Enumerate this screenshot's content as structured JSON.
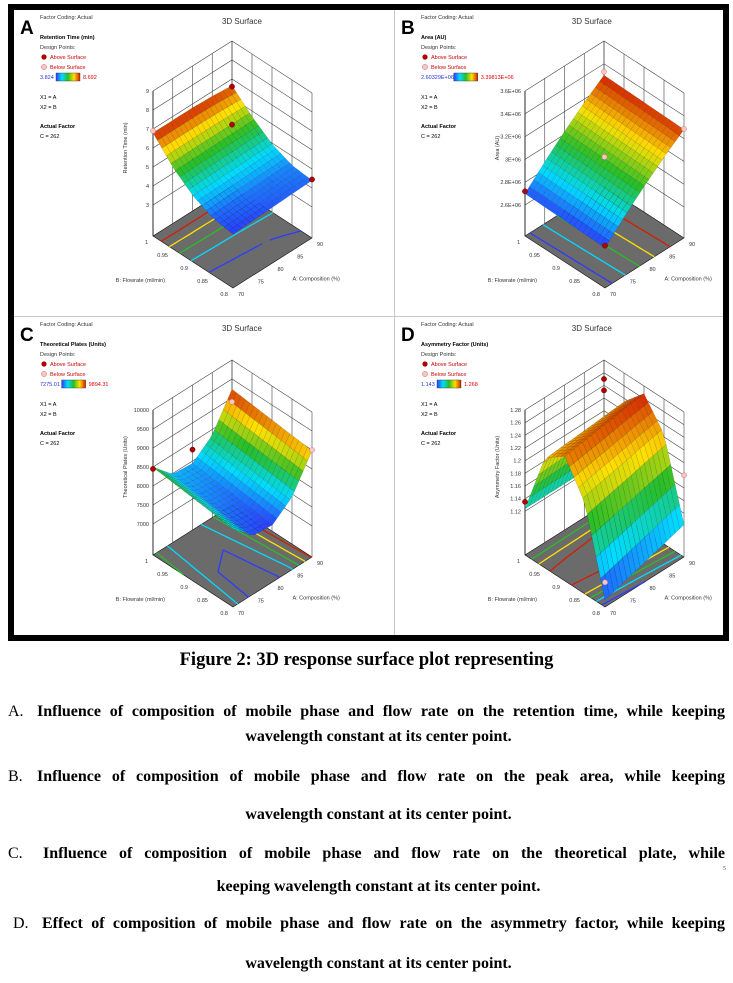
{
  "panels": [
    {
      "letter": "A",
      "factor_coding": "Factor Coding: Actual",
      "response": "Retention Time (min)",
      "design_points_label": "Design Points:",
      "above": "Above Surface",
      "below": "Below Surface",
      "range_min": "3.824",
      "range_max": "8.692",
      "x1": "X1 = A",
      "x2": "X2 = B",
      "actual_factor": "Actual Factor",
      "c_value": "C = 262"
    },
    {
      "letter": "B",
      "factor_coding": "Factor Coding: Actual",
      "response": "Area (AU)",
      "design_points_label": "Design Points:",
      "above": "Above Surface",
      "below": "Below Surface",
      "range_min": "2.60329E+06",
      "range_max": "3.39813E+06",
      "x1": "X1 = A",
      "x2": "X2 = B",
      "actual_factor": "Actual Factor",
      "c_value": "C = 262"
    },
    {
      "letter": "C",
      "factor_coding": "Factor Coding: Actual",
      "response": "Theoretical Plates (Units)",
      "design_points_label": "Design Points:",
      "above": "Above Surface",
      "below": "Below Surface",
      "range_min": "7275.01",
      "range_max": "9894.31",
      "x1": "X1 = A",
      "x2": "X2 = B",
      "actual_factor": "Actual Factor",
      "c_value": "C = 262"
    },
    {
      "letter": "D",
      "factor_coding": "Factor Coding: Actual",
      "response": "Asymmetry Factor (Units)",
      "design_points_label": "Design Points:",
      "above": "Above Surface",
      "below": "Below Surface",
      "range_min": "1.143",
      "range_max": "1.268",
      "x1": "X1 = A",
      "x2": "X2 = B",
      "actual_factor": "Actual Factor",
      "c_value": "C = 262"
    }
  ],
  "colors": {
    "above": "#b00000",
    "below": "#f4c6c6",
    "floor": "#6b6b6b",
    "grid": "#444444",
    "low": "#2b3cff",
    "high": "#d02000"
  },
  "chart_data": [
    {
      "type": "surface",
      "title": "3D Surface",
      "zlabel": "Retention Time (min)",
      "xlabel": "A: Composition (%)",
      "ylabel": "B: Flowrate (ml/min)",
      "x": [
        70,
        75,
        80,
        85,
        90
      ],
      "x_tick_labels": [
        "70",
        "75",
        "80",
        "85",
        "90"
      ],
      "y": [
        0.8,
        0.85,
        0.9,
        0.95,
        1
      ],
      "y_tick_labels": [
        "0.8",
        "0.85",
        "0.9",
        "0.95",
        "1"
      ],
      "zlim": [
        3,
        9
      ],
      "zticks": [
        3,
        4,
        5,
        6,
        7,
        8,
        9
      ],
      "ztick_labels": [
        "3",
        "4",
        "5",
        "6",
        "7",
        "8",
        "9"
      ],
      "z": [
        [
          4.2,
          4.25,
          4.3,
          4.35,
          4.4
        ],
        [
          4.36,
          4.4,
          4.44,
          4.47,
          4.51
        ],
        [
          4.85,
          4.88,
          4.9,
          4.93,
          4.95
        ],
        [
          5.66,
          5.68,
          5.69,
          5.7,
          5.71
        ],
        [
          6.8,
          6.8,
          6.8,
          6.75,
          6.65
        ]
      ],
      "design_points": [
        {
          "x": 70,
          "y": 1,
          "z": 6.9,
          "type": "below"
        },
        {
          "x": 90,
          "y": 1,
          "z": 6.6,
          "type": "above"
        },
        {
          "x": 90,
          "y": 1,
          "z": 4.6,
          "type": "above"
        },
        {
          "x": 90,
          "y": 0.8,
          "z": 4.45,
          "type": "above"
        }
      ]
    },
    {
      "type": "surface",
      "title": "3D Surface",
      "zlabel": "Area (AU)",
      "xlabel": "A: Composition (%)",
      "ylabel": "B: Flowrate (ml/min)",
      "x": [
        70,
        75,
        80,
        85,
        90
      ],
      "x_tick_labels": [
        "70",
        "75",
        "80",
        "85",
        "90"
      ],
      "y": [
        0.8,
        0.85,
        0.9,
        0.95,
        1
      ],
      "y_tick_labels": [
        "0.8",
        "0.85",
        "0.9",
        "0.95",
        "1"
      ],
      "zlim": [
        2600000,
        3600000
      ],
      "zticks": [
        2600000,
        2800000,
        3000000,
        3200000,
        3400000,
        3600000
      ],
      "ztick_labels": [
        "2.6E+06",
        "2.8E+06",
        "3E+06",
        "3.2E+06",
        "3.4E+06",
        "3.6E+06"
      ],
      "z": [
        [
          2680000,
          2849000,
          3005000,
          3149000,
          3280000
        ],
        [
          2685000,
          2854000,
          3010000,
          3154000,
          3285000
        ],
        [
          2690000,
          2859000,
          3015000,
          3159000,
          3290000
        ],
        [
          2695000,
          2864000,
          3020000,
          3164000,
          3295000
        ],
        [
          2700000,
          2869000,
          3025000,
          3169000,
          3300000
        ]
      ],
      "design_points": [
        {
          "x": 70,
          "y": 1,
          "z": 2720000,
          "type": "above"
        },
        {
          "x": 90,
          "y": 1,
          "z": 3330000,
          "type": "below"
        },
        {
          "x": 80,
          "y": 0.9,
          "z": 3030000,
          "type": "below"
        },
        {
          "x": 90,
          "y": 0.8,
          "z": 3285000,
          "type": "below"
        },
        {
          "x": 70,
          "y": 0.8,
          "z": 2700000,
          "type": "above"
        }
      ]
    },
    {
      "type": "surface",
      "title": "3D Surface",
      "zlabel": "Theoretical Plates (Units)",
      "xlabel": "A: Composition (%)",
      "ylabel": "B: Flowrate (ml/min)",
      "x": [
        70,
        75,
        80,
        85,
        90
      ],
      "x_tick_labels": [
        "70",
        "75",
        "80",
        "85",
        "90"
      ],
      "y": [
        0.8,
        0.85,
        0.9,
        0.95,
        1
      ],
      "y_tick_labels": [
        "0.8",
        "0.85",
        "0.9",
        "0.95",
        "1"
      ],
      "zlim": [
        7000,
        10000
      ],
      "zticks": [
        7000,
        7500,
        8000,
        8500,
        9000,
        9500,
        10000
      ],
      "ztick_labels": [
        "7000",
        "7500",
        "8000",
        "8500",
        "9000",
        "9500",
        "10000"
      ],
      "z": [
        [
          8242,
          7733,
          7687,
          8103,
          8982
        ],
        [
          8305,
          7796,
          7750,
          8166,
          9045
        ],
        [
          8367,
          7858,
          7812,
          8228,
          9107
        ],
        [
          8430,
          7921,
          7875,
          8291,
          9170
        ],
        [
          8492,
          7983,
          7937,
          8353,
          9232
        ]
      ],
      "design_points": [
        {
          "x": 70,
          "y": 1,
          "z": 8450,
          "type": "above"
        },
        {
          "x": 80,
          "y": 1,
          "z": 8300,
          "type": "above"
        },
        {
          "x": 90,
          "y": 1,
          "z": 8900,
          "type": "below"
        },
        {
          "x": 90,
          "y": 0.8,
          "z": 9000,
          "type": "below"
        }
      ]
    },
    {
      "type": "surface",
      "title": "3D Surface",
      "zlabel": "Asymmetry Factor (Units)",
      "xlabel": "A: Composition (%)",
      "ylabel": "B: Flowrate (ml/min)",
      "x": [
        70,
        75,
        80,
        85,
        90
      ],
      "x_tick_labels": [
        "70",
        "75",
        "80",
        "85",
        "90"
      ],
      "y": [
        0.8,
        0.85,
        0.9,
        0.95,
        1
      ],
      "y_tick_labels": [
        "0.8",
        "0.85",
        "0.9",
        "0.95",
        "1"
      ],
      "zlim": [
        1.1,
        1.28
      ],
      "zticks": [
        1.12,
        1.14,
        1.16,
        1.18,
        1.2,
        1.22,
        1.24,
        1.26,
        1.28
      ],
      "ztick_labels": [
        "1.12",
        "1.14",
        "1.16",
        "1.18",
        "1.2",
        "1.22",
        "1.24",
        "1.26",
        "1.28"
      ],
      "z": [
        [
          1.062,
          1.072,
          1.082,
          1.092,
          1.102
        ],
        [
          1.194,
          1.202,
          1.209,
          1.217,
          1.224
        ],
        [
          1.248,
          1.253,
          1.258,
          1.263,
          1.268
        ],
        [
          1.225,
          1.228,
          1.23,
          1.233,
          1.235
        ],
        [
          1.124,
          1.124,
          1.124,
          1.124,
          1.124
        ]
      ],
      "design_points": [
        {
          "x": 70,
          "y": 1,
          "z": 1.135,
          "type": "above"
        },
        {
          "x": 90,
          "y": 1,
          "z": 1.25,
          "type": "above"
        },
        {
          "x": 90,
          "y": 1,
          "z": 1.232,
          "type": "above"
        },
        {
          "x": 90,
          "y": 0.8,
          "z": 1.18,
          "type": "below"
        },
        {
          "x": 70,
          "y": 0.8,
          "z": 1.09,
          "type": "below"
        }
      ]
    }
  ],
  "caption": {
    "title": "Figure 2: 3D response surface plot representing",
    "items": [
      {
        "marker": "A.",
        "line1": "Influence of composition of mobile phase and flow rate on the retention time, while keeping",
        "line2": "wavelength constant at its center point."
      },
      {
        "marker": "B.",
        "line1": "Influence of composition of mobile phase and flow rate on the peak area, while keeping",
        "line2": "wavelength constant at its center point."
      },
      {
        "marker": "C.",
        "line1": "Influence of composition of mobile phase and flow rate on the theoretical plate, while",
        "line2": "keeping wavelength constant at its center point."
      },
      {
        "marker": "D.",
        "line1": "Effect of composition of mobile phase and flow rate on the asymmetry factor, while keeping",
        "line2": "wavelength constant at its center point."
      }
    ],
    "speck": "5"
  }
}
